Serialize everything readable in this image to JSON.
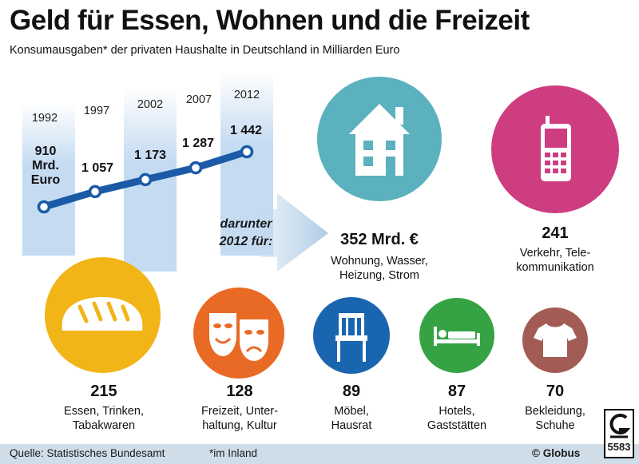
{
  "header": {
    "title": "Geld für Essen, Wohnen und die Freizeit",
    "subtitle": "Konsumausgaben* der privaten Haushalte in Deutschland in Milliarden Euro"
  },
  "chart_data": [
    {
      "type": "line",
      "title": "",
      "x": [
        "1992",
        "1997",
        "2002",
        "2007",
        "2012"
      ],
      "series": [
        {
          "values": [
            910,
            1057,
            1173,
            1287,
            1442
          ]
        }
      ],
      "data_labels": [
        "910",
        "1 057",
        "1 173",
        "1 287",
        "1 442"
      ],
      "first_label_unit": [
        "Mrd.",
        "Euro"
      ],
      "color": "#1a5aa6",
      "grid": false
    },
    {
      "type": "bubble",
      "title": "darunter 2012 für:",
      "intro": [
        "darunter",
        "2012 für:"
      ],
      "items": [
        {
          "value": 352,
          "value_label": "352 Mrd. €",
          "label": [
            "Wohnung, Wasser,",
            "Heizung, Strom"
          ],
          "color": "#5bb1bd",
          "icon": "house-icon"
        },
        {
          "value": 241,
          "value_label": "241",
          "label": [
            "Verkehr, Tele-",
            "kommunikation"
          ],
          "color": "#cf3d81",
          "icon": "mobile-phone-icon"
        },
        {
          "value": 215,
          "value_label": "215",
          "label": [
            "Essen, Trinken,",
            "Tabakwaren"
          ],
          "color": "#f2b517",
          "icon": "bread-icon"
        },
        {
          "value": 128,
          "value_label": "128",
          "label": [
            "Freizeit, Unter-",
            "haltung, Kultur"
          ],
          "color": "#e96a25",
          "icon": "theater-masks-icon"
        },
        {
          "value": 89,
          "value_label": "89",
          "label": [
            "Möbel,",
            "Hausrat"
          ],
          "color": "#1a65b0",
          "icon": "chair-icon"
        },
        {
          "value": 87,
          "value_label": "87",
          "label": [
            "Hotels,",
            "Gaststätten"
          ],
          "color": "#35a244",
          "icon": "bed-icon"
        },
        {
          "value": 70,
          "value_label": "70",
          "label": [
            "Bekleidung,",
            "Schuhe"
          ],
          "color": "#a35c55",
          "icon": "tshirt-icon"
        }
      ]
    }
  ],
  "footer": {
    "source": "Quelle: Statistisches Bundesamt",
    "note": "*im Inland",
    "brand": "© Globus",
    "logo_number": "5583"
  }
}
